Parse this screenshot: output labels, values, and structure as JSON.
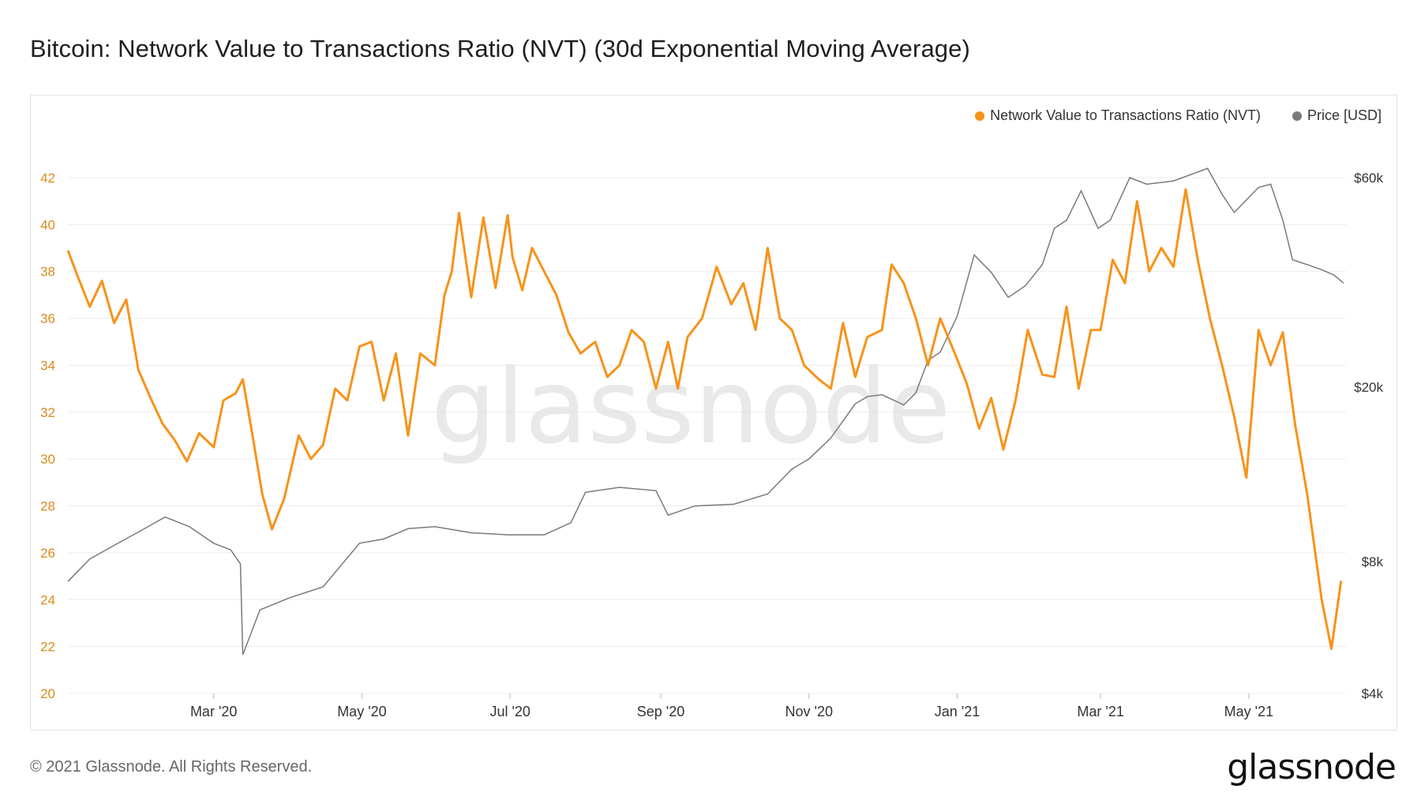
{
  "title": "Bitcoin: Network Value to Transactions Ratio (NVT) (30d Exponential Moving Average)",
  "footer": {
    "copyright": "© 2021 Glassnode. All Rights Reserved.",
    "logo_text": "glassnode"
  },
  "watermark": "glassnode",
  "colors": {
    "nvt": "#f7931a",
    "price": "#7a7a7a",
    "grid": "#ececec",
    "left_axis_text": "#d98b1d",
    "right_axis_text": "#333333"
  },
  "chart_data": {
    "type": "line",
    "legend_position": "top-right",
    "grid": true,
    "x_ticks": [
      "Mar '20",
      "May '20",
      "Jul '20",
      "Sep '20",
      "Nov '20",
      "Jan '21",
      "Mar '21",
      "May '21"
    ],
    "x_tick_dates": [
      "2020-03-01",
      "2020-05-01",
      "2020-07-01",
      "2020-09-01",
      "2020-11-01",
      "2021-01-01",
      "2021-03-01",
      "2021-05-01"
    ],
    "x_range": [
      "2020-01-01",
      "2021-06-10"
    ],
    "y_left": {
      "range": [
        20,
        42
      ],
      "ticks": [
        20,
        22,
        24,
        26,
        28,
        30,
        32,
        34,
        36,
        38,
        40,
        42
      ]
    },
    "y_right": {
      "scale": "log",
      "range": [
        4000,
        60000
      ],
      "ticks": [
        4000,
        8000,
        20000,
        60000
      ],
      "tick_labels": [
        "$4k",
        "$8k",
        "$20k",
        "$60k"
      ]
    },
    "series": [
      {
        "name": "Network Value to Transactions Ratio (NVT)",
        "axis": "left",
        "x": [
          "2020-01-01",
          "2020-01-05",
          "2020-01-10",
          "2020-01-15",
          "2020-01-20",
          "2020-01-25",
          "2020-01-30",
          "2020-02-04",
          "2020-02-09",
          "2020-02-14",
          "2020-02-19",
          "2020-02-24",
          "2020-03-01",
          "2020-03-05",
          "2020-03-10",
          "2020-03-13",
          "2020-03-17",
          "2020-03-21",
          "2020-03-25",
          "2020-03-30",
          "2020-04-05",
          "2020-04-10",
          "2020-04-15",
          "2020-04-20",
          "2020-04-25",
          "2020-04-30",
          "2020-05-05",
          "2020-05-10",
          "2020-05-15",
          "2020-05-20",
          "2020-05-25",
          "2020-05-31",
          "2020-06-04",
          "2020-06-07",
          "2020-06-10",
          "2020-06-15",
          "2020-06-20",
          "2020-06-25",
          "2020-06-30",
          "2020-07-02",
          "2020-07-06",
          "2020-07-10",
          "2020-07-15",
          "2020-07-20",
          "2020-07-25",
          "2020-07-30",
          "2020-08-05",
          "2020-08-10",
          "2020-08-15",
          "2020-08-20",
          "2020-08-25",
          "2020-08-30",
          "2020-09-04",
          "2020-09-08",
          "2020-09-12",
          "2020-09-18",
          "2020-09-24",
          "2020-09-30",
          "2020-10-05",
          "2020-10-10",
          "2020-10-15",
          "2020-10-20",
          "2020-10-25",
          "2020-10-30",
          "2020-11-05",
          "2020-11-10",
          "2020-11-15",
          "2020-11-20",
          "2020-11-25",
          "2020-12-01",
          "2020-12-05",
          "2020-12-10",
          "2020-12-15",
          "2020-12-20",
          "2020-12-25",
          "2020-12-31",
          "2021-01-05",
          "2021-01-10",
          "2021-01-15",
          "2021-01-20",
          "2021-01-25",
          "2021-01-30",
          "2021-02-05",
          "2021-02-10",
          "2021-02-15",
          "2021-02-20",
          "2021-02-25",
          "2021-03-01",
          "2021-03-06",
          "2021-03-11",
          "2021-03-16",
          "2021-03-21",
          "2021-03-26",
          "2021-03-31",
          "2021-04-05",
          "2021-04-10",
          "2021-04-15",
          "2021-04-20",
          "2021-04-25",
          "2021-04-30",
          "2021-05-05",
          "2021-05-10",
          "2021-05-15",
          "2021-05-20",
          "2021-05-25",
          "2021-05-31",
          "2021-06-04",
          "2021-06-08"
        ],
        "values": [
          38.9,
          37.8,
          36.5,
          37.6,
          35.8,
          36.8,
          33.8,
          32.6,
          31.5,
          30.8,
          29.9,
          31.1,
          30.5,
          32.5,
          32.8,
          33.4,
          31.0,
          28.5,
          27.0,
          28.3,
          31.0,
          30.0,
          30.6,
          33.0,
          32.5,
          34.8,
          35.0,
          32.5,
          34.5,
          31.0,
          34.5,
          34.0,
          37.0,
          38.0,
          40.5,
          36.9,
          40.3,
          37.3,
          40.4,
          38.6,
          37.2,
          39.0,
          38.0,
          37.0,
          35.4,
          34.5,
          35.0,
          33.5,
          34.0,
          35.5,
          35.0,
          33.0,
          35.0,
          33.0,
          35.2,
          36.0,
          38.2,
          36.6,
          37.5,
          35.5,
          39.0,
          36.0,
          35.5,
          34.0,
          33.4,
          33.0,
          35.8,
          33.5,
          35.2,
          35.5,
          38.3,
          37.5,
          36.0,
          34.0,
          36.0,
          34.5,
          33.2,
          31.3,
          32.6,
          30.4,
          32.5,
          35.5,
          33.6,
          33.5,
          36.5,
          33.0,
          35.5,
          35.5,
          38.5,
          37.5,
          41.0,
          38.0,
          39.0,
          38.2,
          41.5,
          38.5,
          36.0,
          34.0,
          31.8,
          29.2,
          35.5,
          34.0,
          35.4,
          31.5,
          28.5,
          24.0,
          21.9,
          24.8
        ]
      },
      {
        "name": "Price [USD]",
        "axis": "right",
        "x": [
          "2020-01-01",
          "2020-01-10",
          "2020-01-20",
          "2020-01-31",
          "2020-02-10",
          "2020-02-20",
          "2020-03-01",
          "2020-03-08",
          "2020-03-12",
          "2020-03-13",
          "2020-03-20",
          "2020-04-01",
          "2020-04-15",
          "2020-04-30",
          "2020-05-10",
          "2020-05-20",
          "2020-05-31",
          "2020-06-15",
          "2020-06-30",
          "2020-07-15",
          "2020-07-26",
          "2020-08-01",
          "2020-08-15",
          "2020-08-30",
          "2020-09-04",
          "2020-09-15",
          "2020-10-01",
          "2020-10-15",
          "2020-10-25",
          "2020-11-01",
          "2020-11-10",
          "2020-11-20",
          "2020-11-25",
          "2020-12-01",
          "2020-12-10",
          "2020-12-15",
          "2020-12-20",
          "2020-12-25",
          "2021-01-01",
          "2021-01-08",
          "2021-01-15",
          "2021-01-22",
          "2021-01-29",
          "2021-02-05",
          "2021-02-10",
          "2021-02-15",
          "2021-02-21",
          "2021-02-28",
          "2021-03-05",
          "2021-03-13",
          "2021-03-20",
          "2021-03-31",
          "2021-04-14",
          "2021-04-20",
          "2021-04-25",
          "2021-05-05",
          "2021-05-10",
          "2021-05-15",
          "2021-05-19",
          "2021-05-25",
          "2021-05-31",
          "2021-06-05",
          "2021-06-09"
        ],
        "values": [
          7200,
          8100,
          8700,
          9400,
          10100,
          9600,
          8800,
          8500,
          7900,
          4900,
          6200,
          6600,
          7000,
          8800,
          9000,
          9500,
          9600,
          9300,
          9200,
          9200,
          9800,
          11500,
          11800,
          11600,
          10200,
          10700,
          10800,
          11400,
          13000,
          13700,
          15300,
          18300,
          19000,
          19200,
          18200,
          19400,
          23000,
          24000,
          29000,
          40000,
          36500,
          32000,
          34000,
          38000,
          46000,
          48000,
          56000,
          46000,
          48000,
          60000,
          58000,
          59000,
          63000,
          55000,
          50000,
          57000,
          58000,
          48000,
          39000,
          38000,
          37000,
          36000,
          34500
        ]
      }
    ]
  }
}
